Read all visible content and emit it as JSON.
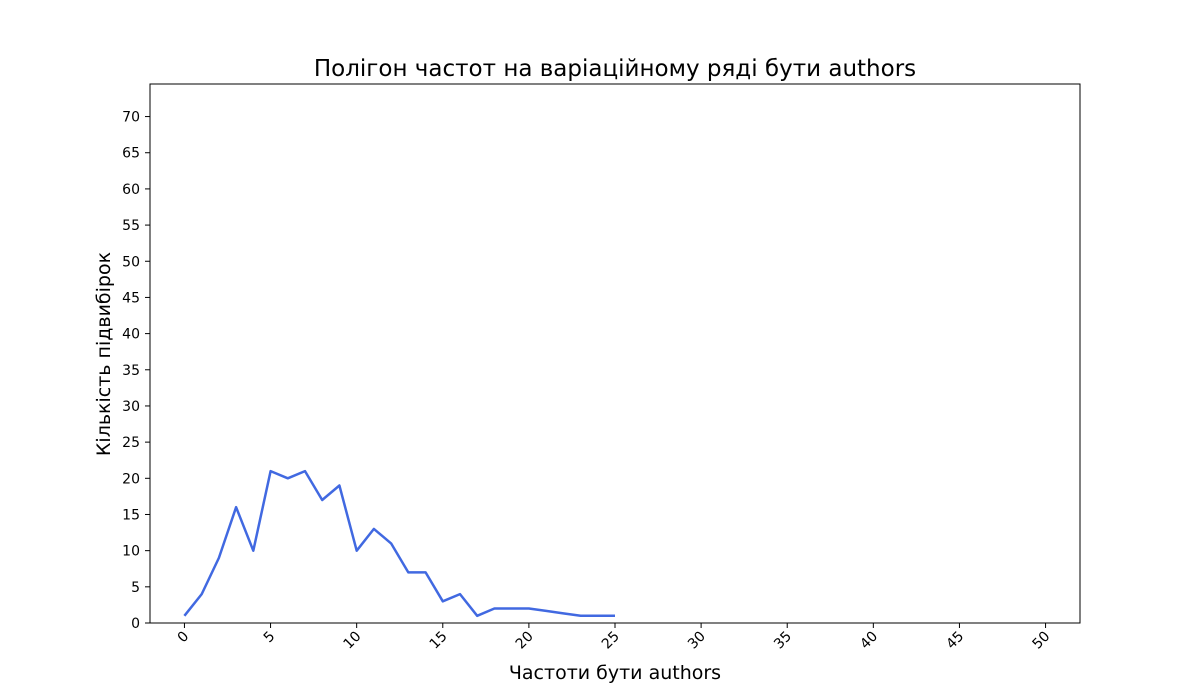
{
  "chart_data": {
    "type": "line",
    "title": "Полігон частот на варіаційному ряді бути authors",
    "xlabel": "Частоти бути authors",
    "ylabel": "Кількість підвибірок",
    "xlim": [
      -2,
      52
    ],
    "ylim": [
      0,
      74.5
    ],
    "x_ticks": [
      0,
      5,
      10,
      15,
      20,
      25,
      30,
      35,
      40,
      45,
      50
    ],
    "y_ticks": [
      0,
      5,
      10,
      15,
      20,
      25,
      30,
      35,
      40,
      45,
      50,
      55,
      60,
      65,
      70
    ],
    "grid": false,
    "line_color": "#4169e1",
    "series": [
      {
        "x": [
          0,
          1,
          2,
          3,
          4,
          5,
          6,
          7,
          8,
          9,
          10,
          11,
          12,
          13,
          14,
          15,
          16,
          17,
          18,
          19,
          20,
          21,
          22,
          23,
          24,
          25
        ],
        "y": [
          1,
          4,
          9,
          16,
          10,
          21,
          20,
          21,
          17,
          19,
          10,
          13,
          11,
          7,
          7,
          3,
          4,
          1,
          2,
          2,
          2,
          1.67,
          1.33,
          1,
          1,
          1
        ]
      }
    ]
  }
}
